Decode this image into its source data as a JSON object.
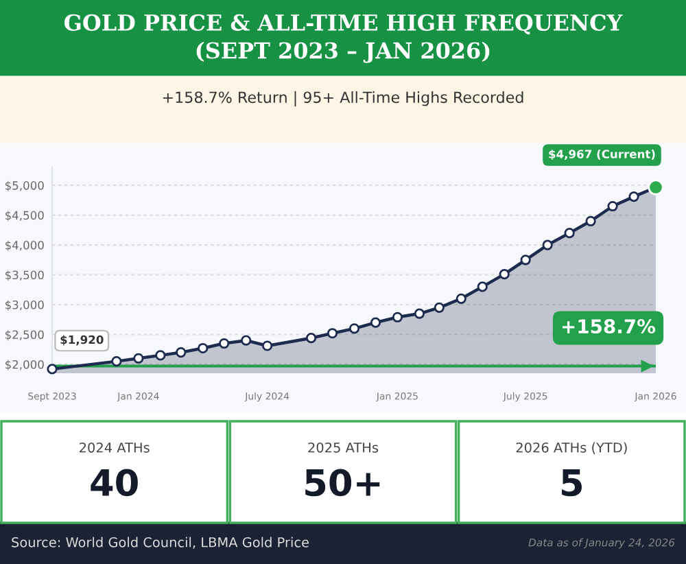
{
  "chart_data": {
    "type": "area",
    "title": "GOLD PRICE & ALL-TIME HIGH FREQUENCY\n(SEPT 2023 – JAN 2026)",
    "subtitle": "+158.7% Return | 95+ All-Time Highs Recorded",
    "x": [
      "2023-09",
      "2023-12",
      "2024-01",
      "2024-02",
      "2024-03",
      "2024-04",
      "2024-05",
      "2024-06",
      "2024-07",
      "2024-09",
      "2024-10",
      "2024-11",
      "2024-12",
      "2025-01",
      "2025-02",
      "2025-03",
      "2025-04",
      "2025-05",
      "2025-06",
      "2025-07",
      "2025-08",
      "2025-09",
      "2025-10",
      "2025-11",
      "2025-12",
      "2026-01"
    ],
    "series": [
      {
        "color": "#1d2b4f",
        "values": [
          1920,
          2050,
          2100,
          2150,
          2200,
          2270,
          2350,
          2400,
          2310,
          2440,
          2520,
          2600,
          2700,
          2790,
          2850,
          2950,
          3100,
          3300,
          3510,
          3750,
          4000,
          4200,
          4400,
          4650,
          4810,
          4967
        ]
      }
    ],
    "marker": "circle",
    "xlim": [
      "2023-09",
      "2026-01"
    ],
    "ylim": [
      1850,
      5300
    ],
    "yticks": [
      {
        "value": 2000,
        "label": "$2,000"
      },
      {
        "value": 2500,
        "label": "$2,500"
      },
      {
        "value": 3000,
        "label": "$3,000"
      },
      {
        "value": 3500,
        "label": "$3,500"
      },
      {
        "value": 4000,
        "label": "$4,000"
      },
      {
        "value": 4500,
        "label": "$4,500"
      },
      {
        "value": 5000,
        "label": "$5,000"
      }
    ],
    "xticks": [
      {
        "value": "2023-09",
        "label": "Sept 2023"
      },
      {
        "value": "2024-01",
        "label": "Jan 2024"
      },
      {
        "value": "2024-07",
        "label": "July 2024"
      },
      {
        "value": "2025-01",
        "label": "Jan 2025"
      },
      {
        "value": "2025-07",
        "label": "July 2025"
      },
      {
        "value": "2026-01",
        "label": "Jan 2026"
      }
    ],
    "grid": "y",
    "ref_lines": [
      {
        "axis": "y",
        "value": 1970,
        "color": "#22a04b"
      }
    ],
    "annotations": [
      {
        "text": "$1,920",
        "x": "2023-09",
        "y": 1920
      },
      {
        "text": "$4,967 (Current)",
        "x": "2026-01",
        "y": 4967
      },
      "+158.7%",
      "2024 ATHs",
      "40",
      "2025 ATHs",
      "50+",
      "2026 ATHs (YTD)",
      "5",
      "Source: World Gold Council, LBMA Gold Price",
      "Data as of January 24, 2026"
    ]
  }
}
